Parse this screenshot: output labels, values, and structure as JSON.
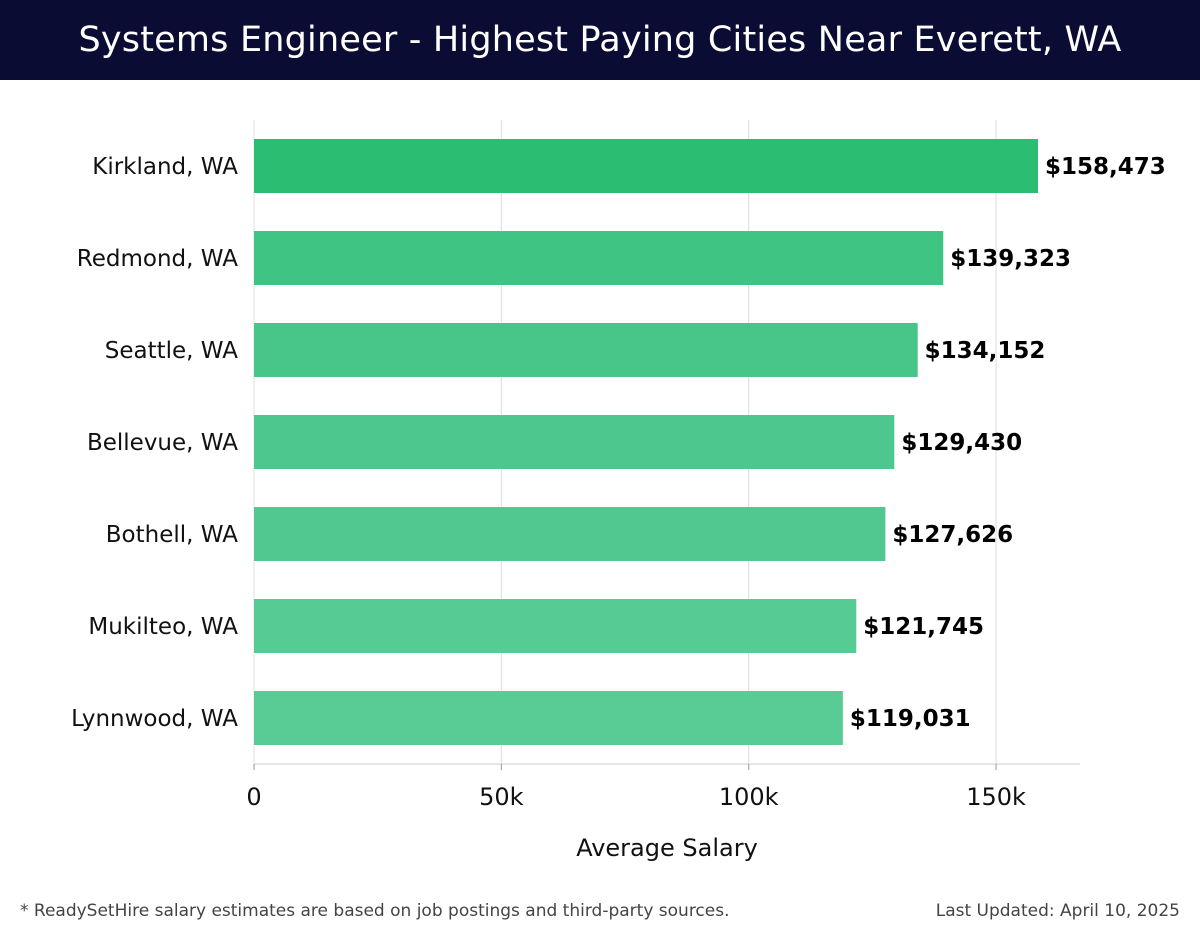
{
  "header": {
    "title": "Systems Engineer - Highest Paying Cities Near Everett, WA"
  },
  "chart_data": {
    "type": "bar",
    "orientation": "horizontal",
    "categories": [
      "Kirkland, WA",
      "Redmond, WA",
      "Seattle, WA",
      "Bellevue, WA",
      "Bothell, WA",
      "Mukilteo, WA",
      "Lynnwood, WA"
    ],
    "values": [
      158473,
      139323,
      134152,
      129430,
      127626,
      121745,
      119031
    ],
    "value_labels": [
      "$158,473",
      "$139,323",
      "$134,152",
      "$129,430",
      "$127,626",
      "$121,745",
      "$119,031"
    ],
    "colors": [
      "#2bbd72",
      "#3fc484",
      "#48c589",
      "#4dc78d",
      "#50c88f",
      "#57cb94",
      "#59cc95"
    ],
    "xticks": [
      0,
      50000,
      100000,
      150000
    ],
    "xtick_labels": [
      "0",
      "50k",
      "100k",
      "150k"
    ],
    "xlim": [
      0,
      167000
    ],
    "xlabel": "Average Salary",
    "ylabel": "",
    "grid": true,
    "legend": "none"
  },
  "footer": {
    "note": "* ReadySetHire salary estimates are based on job postings and third-party sources.",
    "updated": "Last Updated: April 10, 2025"
  }
}
